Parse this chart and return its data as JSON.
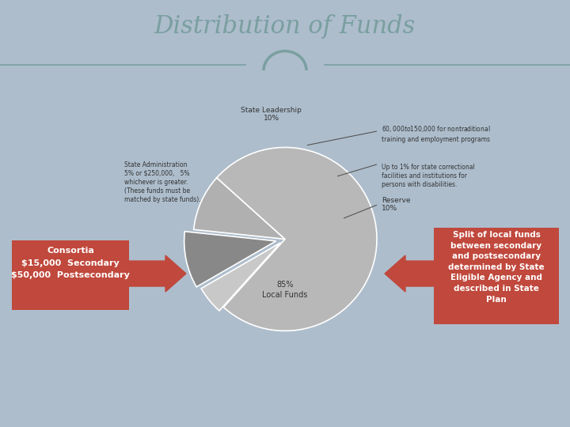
{
  "title": "Distribution of Funds",
  "title_color": "#7a9fa0",
  "slide_bg": "#adbdcc",
  "content_bg": "#ffffff",
  "header_bg": "#ffffff",
  "footer_bg": "#7a9fa0",
  "pie_slices": [
    5,
    10,
    10,
    75
  ],
  "pie_colors": [
    "#c8c8c8",
    "#888888",
    "#b0b0b0",
    "#b8b8b8"
  ],
  "pie_explode": [
    0.06,
    0.1,
    0.0,
    0.0
  ],
  "pie_startangle": 228,
  "left_box_text": "Consortia\n$15,000  Secondary\n$50,000  Postsecondary",
  "right_box_text": "Split of local funds\nbetween secondary\nand postsecondary\ndetermined by State\nEligible Agency and\ndescribed in State\nPlan",
  "box_color": "#c0483c",
  "arrow_color": "#c0483c",
  "teal_color": "#7a9fa0",
  "label_state_admin": "State Administration\n5% or $250,000,   5%\nwhichever is greater.\n(These funds must be\nmatched by state funds).",
  "label_state_leadership": "State Leadership\n10%",
  "label_reserve": "Reserve\n10%",
  "label_local": "85%\nLocal Funds",
  "ann1": "$60,000 to $150,000 for nontraditional\ntraining and employment programs",
  "ann2": "Up to 1% for state correctional\nfacilities and institutions for\npersons with disabilities."
}
